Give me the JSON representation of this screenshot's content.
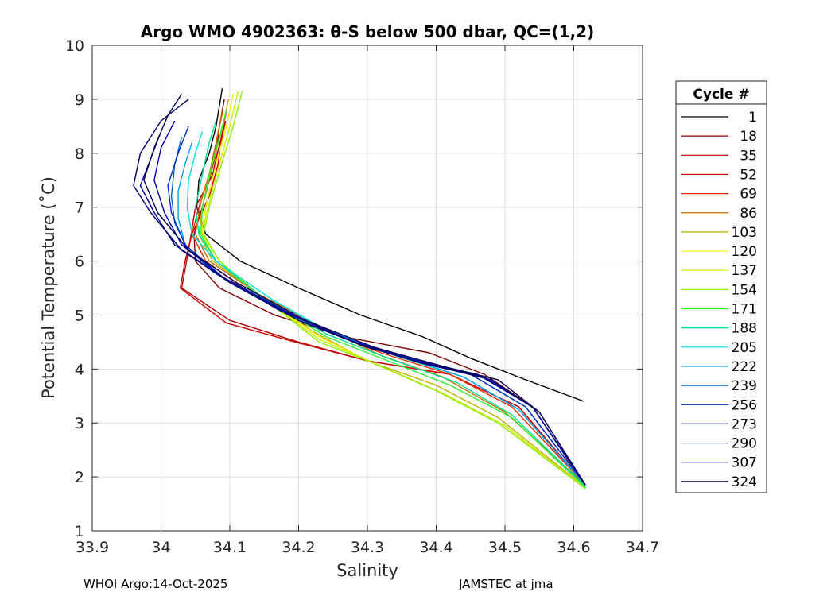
{
  "chart_data": {
    "type": "line",
    "title": "Argo WMO 4902363: θ-S below 500 dbar,  QC=(1,2)",
    "xlabel": "Salinity",
    "ylabel": "Potential Temperature (˚C)",
    "xlim": [
      33.9,
      34.7
    ],
    "ylim": [
      1,
      10
    ],
    "xticks": [
      "33.9",
      "34",
      "34.1",
      "34.2",
      "34.3",
      "34.4",
      "34.5",
      "34.6",
      "34.7"
    ],
    "xtick_values": [
      33.9,
      34.0,
      34.1,
      34.2,
      34.3,
      34.4,
      34.5,
      34.6,
      34.7
    ],
    "yticks": [
      "1",
      "2",
      "3",
      "4",
      "5",
      "6",
      "7",
      "8",
      "9",
      "10"
    ],
    "ytick_values": [
      1,
      2,
      3,
      4,
      5,
      6,
      7,
      8,
      9,
      10
    ],
    "grid": true,
    "legend_title": "Cycle #",
    "legend_position": "outside-right",
    "series": [
      {
        "name": "1",
        "color": "#000000",
        "salinity": [
          34.089,
          34.08,
          34.07,
          34.055,
          34.052,
          34.065,
          34.115,
          34.2,
          34.29,
          34.38,
          34.45,
          34.53,
          34.615
        ],
        "theta": [
          9.2,
          8.5,
          8.0,
          7.5,
          7.0,
          6.5,
          6.0,
          5.5,
          5.0,
          4.6,
          4.2,
          3.8,
          3.4
        ]
      },
      {
        "name": "18",
        "color": "#800000",
        "salinity": [
          34.092,
          34.085,
          34.08,
          34.06,
          34.048,
          34.05,
          34.085,
          34.165,
          34.265,
          34.39,
          34.47,
          34.54,
          34.616
        ],
        "theta": [
          9.0,
          8.5,
          8.0,
          7.0,
          6.5,
          6.0,
          5.5,
          5.0,
          4.6,
          4.3,
          3.9,
          3.3,
          1.85
        ]
      },
      {
        "name": "35",
        "color": "#b00000",
        "salinity": [
          34.095,
          34.088,
          34.082,
          34.075,
          34.05,
          34.04,
          34.03,
          34.1,
          34.2,
          34.3,
          34.42,
          34.52,
          34.617
        ],
        "theta": [
          8.8,
          8.3,
          8.0,
          7.6,
          7.0,
          6.2,
          5.5,
          4.9,
          4.5,
          4.15,
          3.9,
          3.3,
          1.85
        ]
      },
      {
        "name": "52",
        "color": "#d00000",
        "salinity": [
          34.094,
          34.087,
          34.083,
          34.07,
          34.045,
          34.035,
          34.028,
          34.095,
          34.195,
          34.3,
          34.42,
          34.52,
          34.616
        ],
        "theta": [
          8.6,
          8.2,
          7.8,
          7.2,
          6.5,
          6.0,
          5.5,
          4.85,
          4.5,
          4.15,
          3.9,
          3.3,
          1.85
        ]
      },
      {
        "name": "69",
        "color": "#e03000",
        "salinity": [
          34.088,
          34.08,
          34.07,
          34.055,
          34.045,
          34.065,
          34.13,
          34.22,
          34.32,
          34.42,
          34.51,
          34.617
        ],
        "theta": [
          8.7,
          8.2,
          7.6,
          7.0,
          6.5,
          6.0,
          5.4,
          4.8,
          4.3,
          3.9,
          3.3,
          1.85
        ]
      },
      {
        "name": "86",
        "color": "#c07000",
        "salinity": [
          34.09,
          34.082,
          34.072,
          34.058,
          34.05,
          34.07,
          34.14,
          34.23,
          34.32,
          34.41,
          34.5,
          34.617
        ],
        "theta": [
          8.8,
          8.3,
          7.7,
          7.1,
          6.5,
          6.0,
          5.4,
          4.8,
          4.25,
          3.85,
          3.2,
          1.85
        ]
      },
      {
        "name": "103",
        "color": "#c0b000",
        "salinity": [
          34.098,
          34.09,
          34.075,
          34.06,
          34.055,
          34.075,
          34.14,
          34.22,
          34.3,
          34.4,
          34.49,
          34.617
        ],
        "theta": [
          9.0,
          8.5,
          7.8,
          7.0,
          6.5,
          6.0,
          5.4,
          4.7,
          4.15,
          3.7,
          3.1,
          1.8
        ]
      },
      {
        "name": "120",
        "color": "#f0f000",
        "salinity": [
          34.105,
          34.095,
          34.08,
          34.065,
          34.058,
          34.08,
          34.15,
          34.23,
          34.31,
          34.4,
          34.49,
          34.617
        ],
        "theta": [
          9.1,
          8.5,
          7.8,
          7.0,
          6.5,
          6.0,
          5.3,
          4.6,
          4.1,
          3.6,
          3.0,
          1.8
        ]
      },
      {
        "name": "137",
        "color": "#c8f000",
        "salinity": [
          34.112,
          34.1,
          34.085,
          34.068,
          34.06,
          34.085,
          34.15,
          34.23,
          34.32,
          34.41,
          34.5,
          34.617
        ],
        "theta": [
          9.15,
          8.5,
          7.8,
          7.0,
          6.5,
          6.0,
          5.3,
          4.55,
          4.05,
          3.55,
          2.95,
          1.78
        ]
      },
      {
        "name": "154",
        "color": "#90f000",
        "salinity": [
          34.118,
          34.105,
          34.088,
          34.07,
          34.062,
          34.085,
          34.15,
          34.23,
          34.31,
          34.4,
          34.49,
          34.617
        ],
        "theta": [
          9.15,
          8.5,
          7.8,
          7.0,
          6.5,
          6.0,
          5.3,
          4.5,
          4.1,
          3.6,
          3.0,
          1.78
        ]
      },
      {
        "name": "171",
        "color": "#30f030",
        "salinity": [
          34.095,
          34.085,
          34.07,
          34.06,
          34.058,
          34.08,
          34.15,
          34.24,
          34.33,
          34.42,
          34.51,
          34.617
        ],
        "theta": [
          8.8,
          8.3,
          7.6,
          7.0,
          6.5,
          6.0,
          5.3,
          4.6,
          4.15,
          3.7,
          3.1,
          1.8
        ]
      },
      {
        "name": "188",
        "color": "#00e090",
        "salinity": [
          34.08,
          34.07,
          34.06,
          34.05,
          34.055,
          34.08,
          34.15,
          34.24,
          34.33,
          34.43,
          34.51,
          34.617
        ],
        "theta": [
          8.6,
          8.2,
          7.6,
          7.0,
          6.5,
          6.0,
          5.3,
          4.65,
          4.2,
          3.75,
          3.15,
          1.82
        ]
      },
      {
        "name": "205",
        "color": "#00e0e0",
        "salinity": [
          34.06,
          34.05,
          34.04,
          34.038,
          34.045,
          34.08,
          34.16,
          34.25,
          34.34,
          34.44,
          34.52,
          34.617
        ],
        "theta": [
          8.4,
          8.0,
          7.5,
          7.0,
          6.5,
          6.0,
          5.3,
          4.65,
          4.25,
          3.85,
          3.25,
          1.85
        ]
      },
      {
        "name": "222",
        "color": "#00a0f0",
        "salinity": [
          34.045,
          34.035,
          34.025,
          34.025,
          34.035,
          34.075,
          34.16,
          34.255,
          34.345,
          34.44,
          34.52,
          34.617
        ],
        "theta": [
          8.2,
          7.8,
          7.3,
          6.8,
          6.3,
          5.8,
          5.2,
          4.65,
          4.25,
          3.85,
          3.25,
          1.85
        ]
      },
      {
        "name": "239",
        "color": "#0060d0",
        "salinity": [
          34.03,
          34.02,
          34.015,
          34.02,
          34.04,
          34.09,
          34.17,
          34.26,
          34.35,
          34.45,
          34.53,
          34.617
        ],
        "theta": [
          8.3,
          7.8,
          7.2,
          6.7,
          6.2,
          5.7,
          5.1,
          4.6,
          4.25,
          3.9,
          3.3,
          1.85
        ]
      },
      {
        "name": "256",
        "color": "#0030c0",
        "salinity": [
          34.04,
          34.025,
          34.01,
          34.015,
          34.035,
          34.09,
          34.18,
          34.27,
          34.36,
          34.45,
          34.53,
          34.617
        ],
        "theta": [
          8.5,
          8.0,
          7.4,
          6.9,
          6.3,
          5.7,
          5.05,
          4.55,
          4.2,
          3.9,
          3.3,
          1.85
        ]
      },
      {
        "name": "273",
        "color": "#0000b0",
        "salinity": [
          34.02,
          34.0,
          33.99,
          34.005,
          34.03,
          34.09,
          34.185,
          34.28,
          34.37,
          34.46,
          34.54,
          34.617
        ],
        "theta": [
          8.6,
          8.1,
          7.5,
          6.9,
          6.3,
          5.7,
          5.05,
          4.5,
          4.15,
          3.9,
          3.3,
          1.85
        ]
      },
      {
        "name": "290",
        "color": "#000090",
        "salinity": [
          34.0,
          33.985,
          33.97,
          33.99,
          34.02,
          34.09,
          34.19,
          34.29,
          34.38,
          34.47,
          34.54,
          34.617
        ],
        "theta": [
          8.4,
          7.9,
          7.4,
          6.9,
          6.3,
          5.7,
          5.0,
          4.45,
          4.1,
          3.85,
          3.3,
          1.85
        ]
      },
      {
        "name": "307",
        "color": "#000070",
        "salinity": [
          34.04,
          34.0,
          33.97,
          33.96,
          33.985,
          34.03,
          34.1,
          34.2,
          34.3,
          34.4,
          34.48,
          34.55,
          34.617
        ],
        "theta": [
          9.0,
          8.6,
          8.0,
          7.4,
          6.9,
          6.2,
          5.6,
          4.9,
          4.4,
          4.05,
          3.8,
          3.2,
          1.85
        ]
      },
      {
        "name": "324",
        "color": "#000050",
        "salinity": [
          34.03,
          34.01,
          33.99,
          33.975,
          33.995,
          34.04,
          34.11,
          34.21,
          34.31,
          34.41,
          34.49,
          34.55,
          34.617
        ],
        "theta": [
          9.1,
          8.7,
          8.1,
          7.5,
          6.9,
          6.2,
          5.6,
          4.9,
          4.4,
          4.05,
          3.8,
          3.2,
          1.85
        ]
      }
    ]
  },
  "footer": {
    "left": "WHOI Argo:14-Oct-2025",
    "right": "JAMSTEC at jma"
  }
}
